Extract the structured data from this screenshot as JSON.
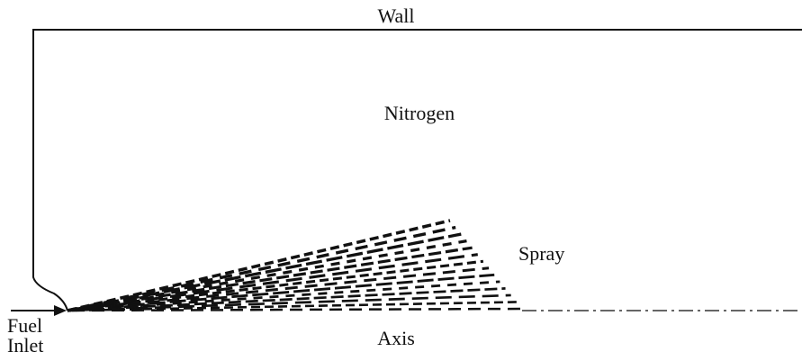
{
  "labels": {
    "wall": "Wall",
    "nitrogen": "Nitrogen",
    "spray": "Spray",
    "fuel": "Fuel",
    "inlet": "Inlet",
    "axis": "Axis"
  }
}
